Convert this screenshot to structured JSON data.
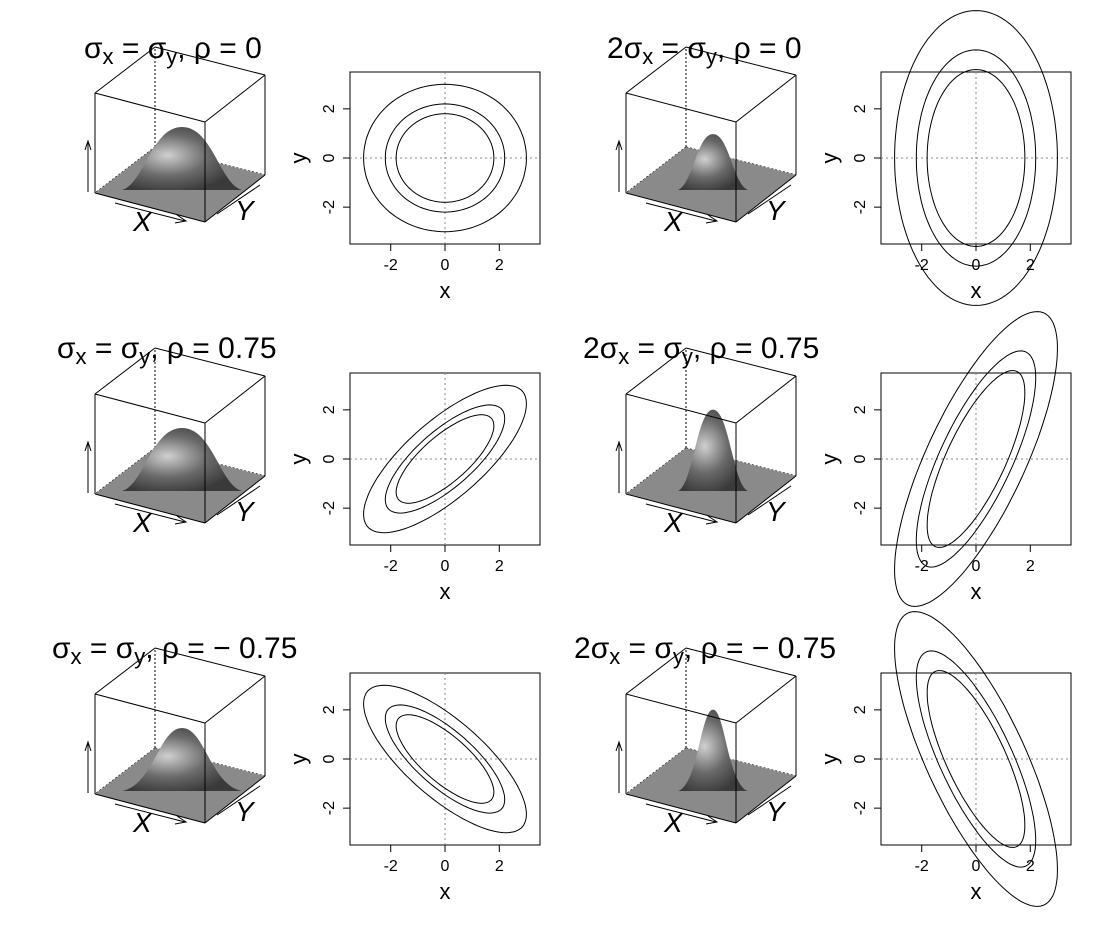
{
  "figure": {
    "panels": [
      {
        "title_lead": "",
        "rho_text": "0",
        "sx": 1,
        "sy": 1,
        "rho": 0
      },
      {
        "title_lead": "2",
        "rho_text": "0",
        "sx": 1,
        "sy": 2,
        "rho": 0
      },
      {
        "title_lead": "",
        "rho_text": "0.75",
        "sx": 1,
        "sy": 1,
        "rho": 0.75
      },
      {
        "title_lead": "2",
        "rho_text": "0.75",
        "sx": 1,
        "sy": 2,
        "rho": 0.75
      },
      {
        "title_lead": "",
        "rho_text": "− 0.75",
        "sx": 1,
        "sy": 1,
        "rho": -0.75
      },
      {
        "title_lead": "2",
        "rho_text": "− 0.75",
        "sx": 1,
        "sy": 2,
        "rho": -0.75
      }
    ],
    "persp_labels": {
      "x": "X",
      "y": "Y"
    }
  },
  "chart_data": [
    {
      "type": "contour",
      "title": "σx = σy,  ρ = 0",
      "sigma_x": 1,
      "sigma_y": 1,
      "rho": 0,
      "contour_levels_mahalanobis": [
        1.8,
        2.2,
        3.0
      ],
      "xlabel": "x",
      "ylabel": "y",
      "xlim": [
        -3.5,
        3.5
      ],
      "ylim": [
        -3.5,
        3.5
      ],
      "xticks": [
        -2,
        0,
        2
      ],
      "yticks": [
        -2,
        0,
        2
      ],
      "reference_lines": {
        "x": 0,
        "y": 0,
        "style": "dotted"
      }
    },
    {
      "type": "contour",
      "title": "2σx = σy,  ρ = 0",
      "sigma_x": 1,
      "sigma_y": 2,
      "rho": 0,
      "contour_levels_mahalanobis": [
        1.8,
        2.2,
        3.0
      ],
      "xlabel": "x",
      "ylabel": "y",
      "xlim": [
        -3.5,
        3.5
      ],
      "ylim": [
        -3.5,
        3.5
      ],
      "xticks": [
        -2,
        0,
        2
      ],
      "yticks": [
        -2,
        0,
        2
      ],
      "reference_lines": {
        "x": 0,
        "y": 0,
        "style": "dotted"
      }
    },
    {
      "type": "contour",
      "title": "σx = σy,  ρ = 0.75",
      "sigma_x": 1,
      "sigma_y": 1,
      "rho": 0.75,
      "contour_levels_mahalanobis": [
        1.8,
        2.2,
        3.0
      ],
      "xlabel": "x",
      "ylabel": "y",
      "xlim": [
        -3.5,
        3.5
      ],
      "ylim": [
        -3.5,
        3.5
      ],
      "xticks": [
        -2,
        0,
        2
      ],
      "yticks": [
        -2,
        0,
        2
      ],
      "reference_lines": {
        "x": 0,
        "y": 0,
        "style": "dotted"
      }
    },
    {
      "type": "contour",
      "title": "2σx = σy,  ρ = 0.75",
      "sigma_x": 1,
      "sigma_y": 2,
      "rho": 0.75,
      "contour_levels_mahalanobis": [
        1.8,
        2.2,
        3.0
      ],
      "xlabel": "x",
      "ylabel": "y",
      "xlim": [
        -3.5,
        3.5
      ],
      "ylim": [
        -3.5,
        3.5
      ],
      "xticks": [
        -2,
        0,
        2
      ],
      "yticks": [
        -2,
        0,
        2
      ],
      "reference_lines": {
        "x": 0,
        "y": 0,
        "style": "dotted"
      }
    },
    {
      "type": "contour",
      "title": "σx = σy,  ρ = −0.75",
      "sigma_x": 1,
      "sigma_y": 1,
      "rho": -0.75,
      "contour_levels_mahalanobis": [
        1.8,
        2.2,
        3.0
      ],
      "xlabel": "x",
      "ylabel": "y",
      "xlim": [
        -3.5,
        3.5
      ],
      "ylim": [
        -3.5,
        3.5
      ],
      "xticks": [
        -2,
        0,
        2
      ],
      "yticks": [
        -2,
        0,
        2
      ],
      "reference_lines": {
        "x": 0,
        "y": 0,
        "style": "dotted"
      }
    },
    {
      "type": "contour",
      "title": "2σx = σy,  ρ = −0.75",
      "sigma_x": 1,
      "sigma_y": 2,
      "rho": -0.75,
      "contour_levels_mahalanobis": [
        1.8,
        2.2,
        3.0
      ],
      "xlabel": "x",
      "ylabel": "y",
      "xlim": [
        -3.5,
        3.5
      ],
      "ylim": [
        -3.5,
        3.5
      ],
      "xticks": [
        -2,
        0,
        2
      ],
      "yticks": [
        -2,
        0,
        2
      ],
      "reference_lines": {
        "x": 0,
        "y": 0,
        "style": "dotted"
      }
    }
  ]
}
